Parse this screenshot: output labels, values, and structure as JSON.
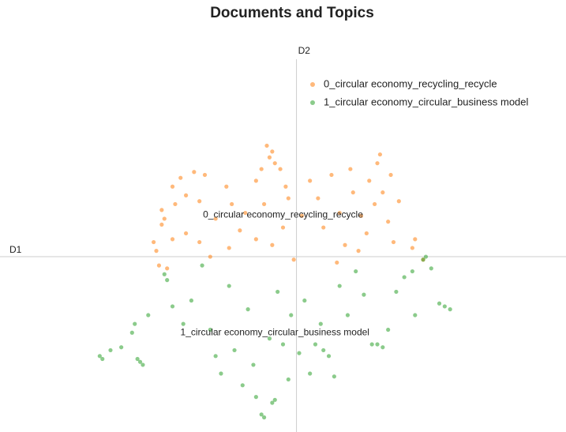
{
  "chart_data": {
    "type": "scatter",
    "title": "Documents and Topics",
    "xlabel": "D1",
    "ylabel": "D2",
    "xlim": [
      -11,
      10
    ],
    "ylim": [
      -6,
      7.3
    ],
    "opacity": 0.55,
    "series": [
      {
        "name": "0_circular economy_recycling_recycle",
        "color": "#ff7f0e",
        "x": [
          -1.1,
          -0.9,
          -1.0,
          -0.8,
          -1.3,
          -0.6,
          -1.5,
          -0.4,
          -4.6,
          -4.3,
          -3.8,
          -3.4,
          -5.0,
          -4.9,
          -5.0,
          -4.5,
          -4.1,
          -3.6,
          -5.3,
          -5.2,
          -4.6,
          -4.1,
          -3.6,
          -5.1,
          -4.8,
          -3.2,
          -3.0,
          -2.6,
          -2.4,
          -2.1,
          -2.5,
          -1.9,
          -1.5,
          -1.2,
          -0.9,
          -0.5,
          -0.3,
          -0.1,
          0.8,
          1.0,
          1.3,
          1.6,
          1.8,
          2.0,
          2.1,
          2.4,
          2.6,
          2.7,
          2.9,
          3.0,
          3.2,
          3.4,
          3.5,
          3.1,
          3.8,
          3.6,
          2.3,
          1.5,
          4.4,
          4.7,
          4.3,
          0.5,
          0.2
        ],
        "values": [
          3.8,
          3.6,
          3.4,
          3.2,
          3.0,
          3.0,
          2.6,
          2.4,
          2.4,
          2.7,
          2.9,
          2.8,
          1.6,
          1.3,
          1.1,
          1.8,
          2.1,
          1.9,
          0.5,
          0.2,
          0.6,
          0.8,
          0.5,
          -0.3,
          -0.4,
          0.0,
          1.3,
          2.4,
          1.8,
          0.9,
          0.3,
          1.5,
          0.6,
          1.8,
          0.4,
          1.0,
          2.0,
          -0.1,
          2.0,
          1.0,
          2.8,
          1.5,
          0.4,
          3.0,
          2.2,
          1.4,
          0.8,
          2.6,
          1.8,
          3.2,
          2.2,
          1.2,
          2.8,
          3.5,
          1.9,
          0.5,
          0.2,
          -0.2,
          0.6,
          -0.1,
          0.3,
          2.6,
          1.4
        ]
      },
      {
        "name": "1_circular economy_circular_business model",
        "color": "#2ca02c",
        "x": [
          -7.3,
          -7.2,
          -6.9,
          -6.5,
          -6.0,
          -6.1,
          -5.9,
          -5.8,
          -5.7,
          -5.5,
          -4.9,
          -4.8,
          -4.6,
          -4.2,
          -3.9,
          -3.5,
          -3.2,
          -3.0,
          -2.8,
          -2.5,
          -2.3,
          -2.0,
          -1.8,
          -1.6,
          -1.5,
          -1.3,
          -1.2,
          -1.0,
          -0.9,
          -0.8,
          -0.7,
          -0.5,
          -0.3,
          -0.2,
          0.1,
          0.3,
          0.5,
          0.7,
          0.9,
          1.0,
          1.2,
          1.4,
          1.6,
          1.9,
          2.2,
          2.5,
          2.8,
          3.0,
          3.2,
          3.4,
          3.7,
          4.0,
          4.3,
          4.8,
          4.7,
          5.0,
          5.3,
          5.5,
          5.7,
          4.4
        ],
        "values": [
          -3.4,
          -3.5,
          -3.2,
          -3.1,
          -2.3,
          -2.6,
          -3.5,
          -3.6,
          -3.7,
          -2.0,
          -0.6,
          -0.8,
          -1.7,
          -2.3,
          -1.5,
          -0.3,
          -2.5,
          -3.4,
          -4.0,
          -1.0,
          -3.2,
          -4.4,
          -1.8,
          -3.7,
          -4.8,
          -5.4,
          -5.5,
          -2.8,
          -5.0,
          -4.9,
          -1.2,
          -3.0,
          -4.2,
          -2.0,
          -3.3,
          -1.5,
          -4.0,
          -3.0,
          -2.3,
          -3.2,
          -3.4,
          -4.1,
          -1.0,
          -2.0,
          -0.5,
          -1.3,
          -3.0,
          -3.0,
          -3.1,
          -2.5,
          -1.2,
          -0.7,
          -0.5,
          0.0,
          -0.1,
          -0.4,
          -1.6,
          -1.7,
          -1.8,
          -2.0
        ]
      }
    ],
    "annotations": [
      {
        "text": "0_circular economy_recycling_recycle",
        "x": -0.5,
        "y": 1.43
      },
      {
        "text": "1_circular economy_circular_business model",
        "x": -0.8,
        "y": -2.6
      }
    ]
  }
}
